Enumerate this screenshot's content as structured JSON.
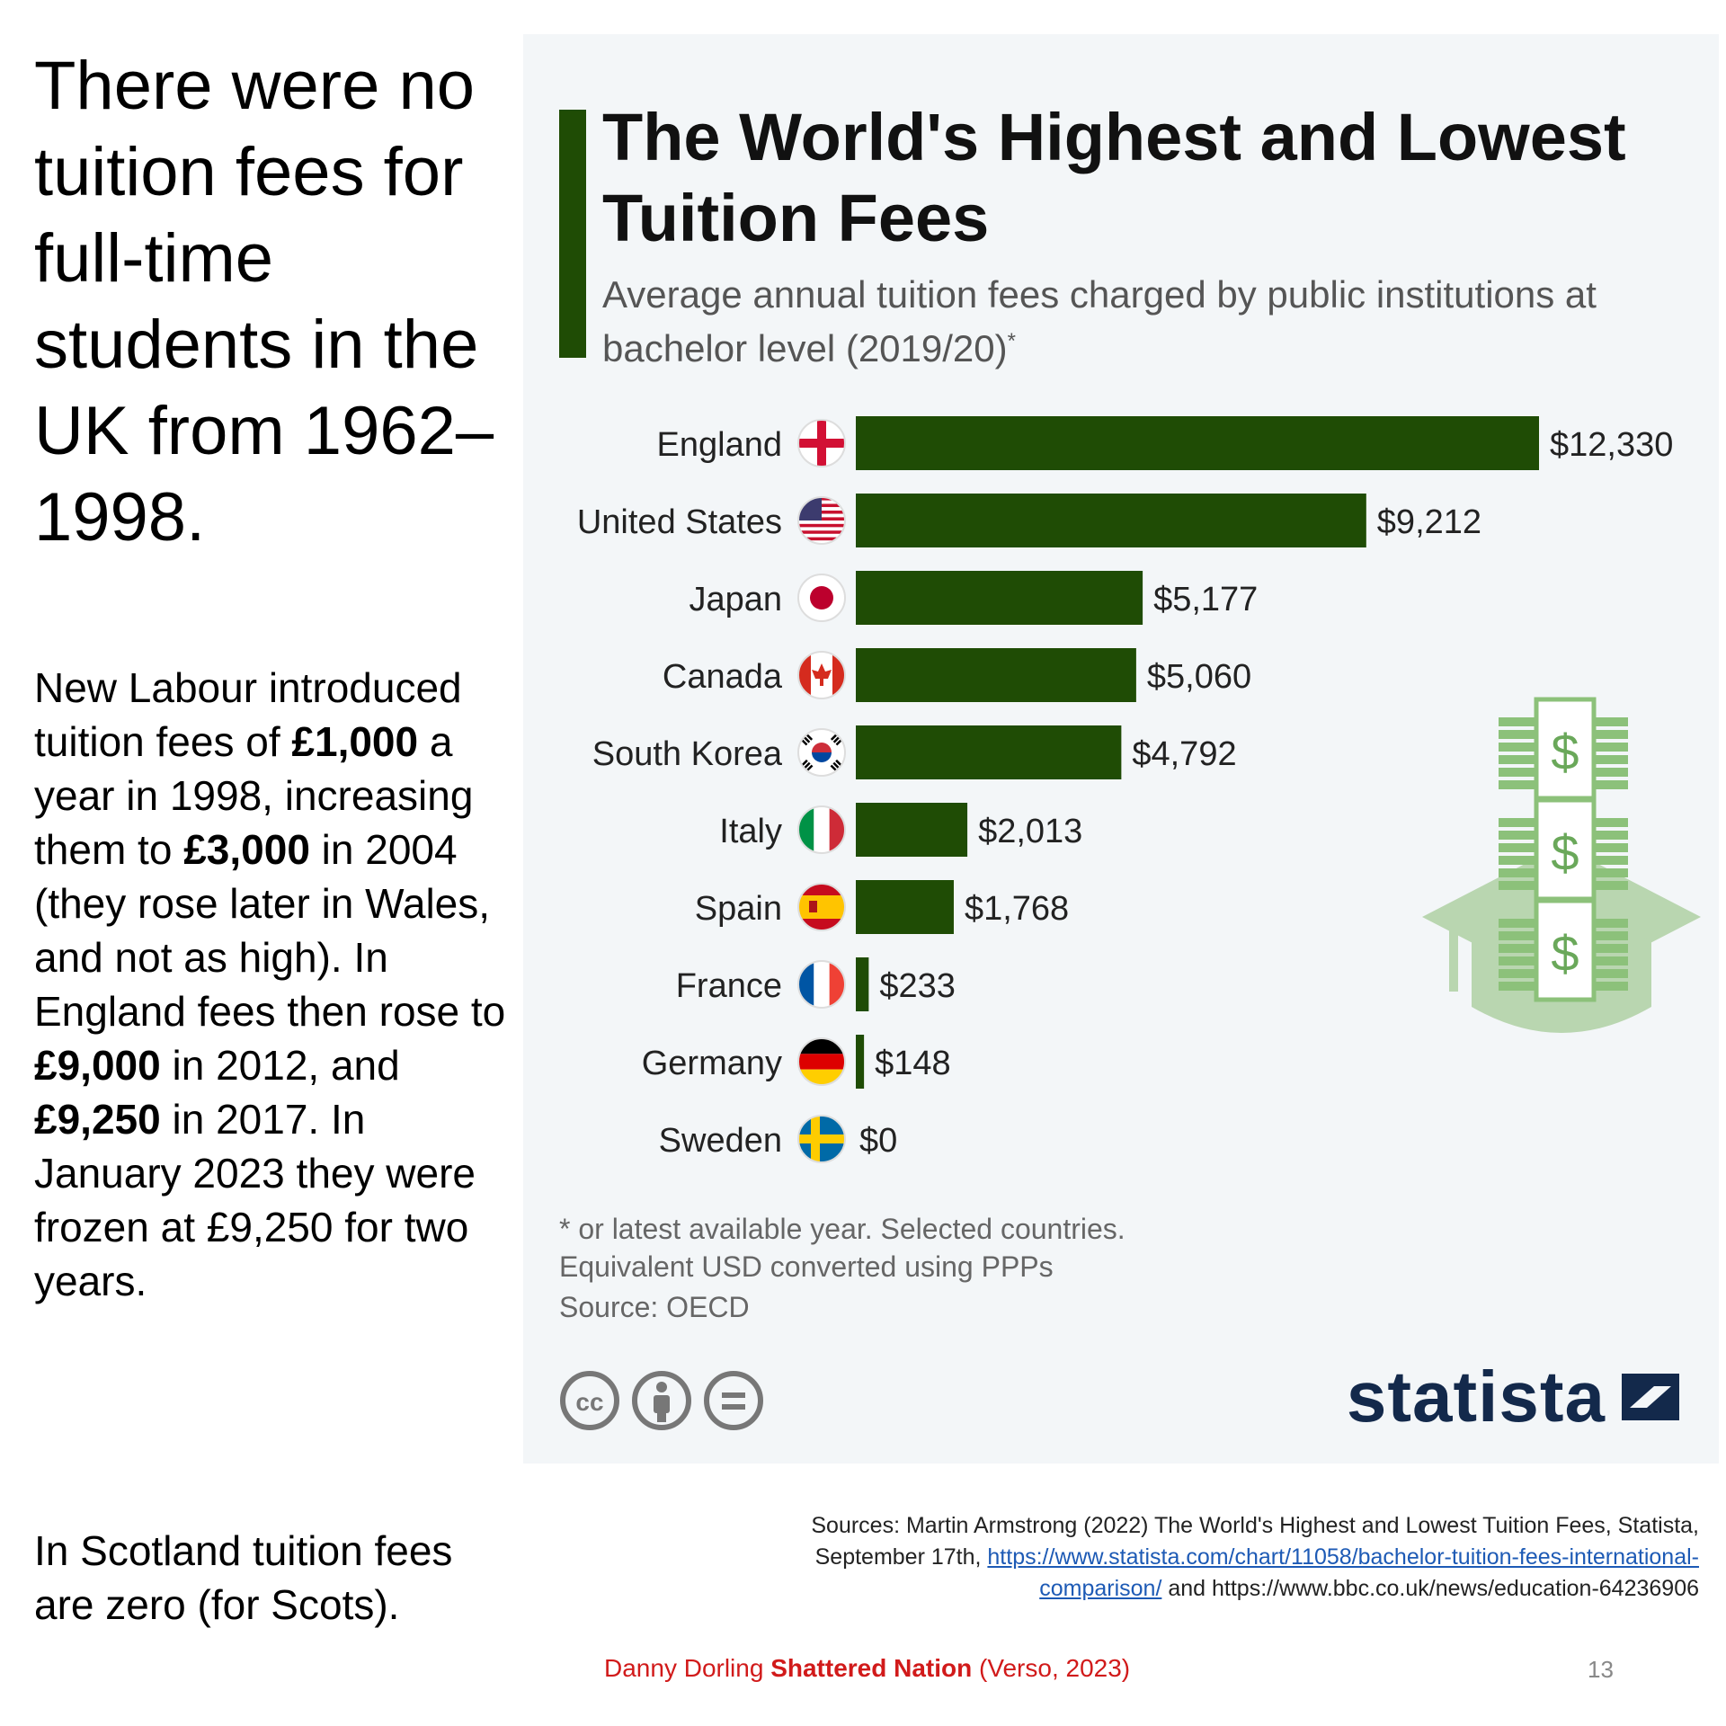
{
  "left": {
    "heading": "There were no tuition fees for full-time students in the UK from 1962–1998.",
    "para_parts": [
      {
        "text": "New Labour introduced tuition fees of ",
        "bold": false
      },
      {
        "text": "£1,000",
        "bold": true
      },
      {
        "text": " a year in 1998, increasing them to ",
        "bold": false
      },
      {
        "text": "£3,000",
        "bold": true
      },
      {
        "text": " in 2004 (they rose later in Wales, and not as high). In England fees then rose to ",
        "bold": false
      },
      {
        "text": "£9,000",
        "bold": true
      },
      {
        "text": " in 2012, and ",
        "bold": false
      },
      {
        "text": "£9,250",
        "bold": true
      },
      {
        "text": " in 2017. In January 2023 they were frozen at £9,250 for two years.",
        "bold": false
      }
    ],
    "scotland": "In Scotland tuition fees are zero (for Scots)."
  },
  "chart_data": {
    "type": "bar",
    "orientation": "horizontal",
    "title": "The World's Highest and Lowest Tuition Fees",
    "subtitle": "Average annual tuition fees charged by public institutions at bachelor level (2019/20)",
    "subtitle_mark": "*",
    "categories": [
      "England",
      "United States",
      "Japan",
      "Canada",
      "South Korea",
      "Italy",
      "Spain",
      "France",
      "Germany",
      "Sweden"
    ],
    "values": [
      12330,
      9212,
      5177,
      5060,
      4792,
      2013,
      1768,
      233,
      148,
      0
    ],
    "value_labels": [
      "$12,330",
      "$9,212",
      "$5,177",
      "$5,060",
      "$4,792",
      "$2,013",
      "$1,768",
      "$233",
      "$148",
      "$0"
    ],
    "xlim": [
      0,
      12330
    ],
    "bar_color": "#1f4c05",
    "grid": false,
    "flag_icons": [
      "england-flag-icon",
      "united-states-flag-icon",
      "japan-flag-icon",
      "canada-flag-icon",
      "south-korea-flag-icon",
      "italy-flag-icon",
      "spain-flag-icon",
      "france-flag-icon",
      "germany-flag-icon",
      "sweden-flag-icon"
    ]
  },
  "chart_footer": {
    "footnote_line1": "* or latest available year. Selected countries.",
    "footnote_line2": "Equivalent USD converted using PPPs",
    "source": "Source: OECD",
    "logo_text": "statista"
  },
  "refs": {
    "line1": "Sources: Martin Armstrong (2022) The World's Highest and Lowest Tuition Fees, Statista,",
    "line2_prefix": "September 17th, ",
    "link_part1": "https://www.statista.com/chart/11058/bachelor-tuition-fees-international-",
    "link_part2": "comparison/",
    "line3_suffix": " and https://www.bbc.co.uk/news/education-64236906"
  },
  "credit": {
    "author": "Danny Dorling ",
    "book": "Shattered Nation",
    "publisher": " (Verso, 2023)"
  },
  "page_number": "13"
}
